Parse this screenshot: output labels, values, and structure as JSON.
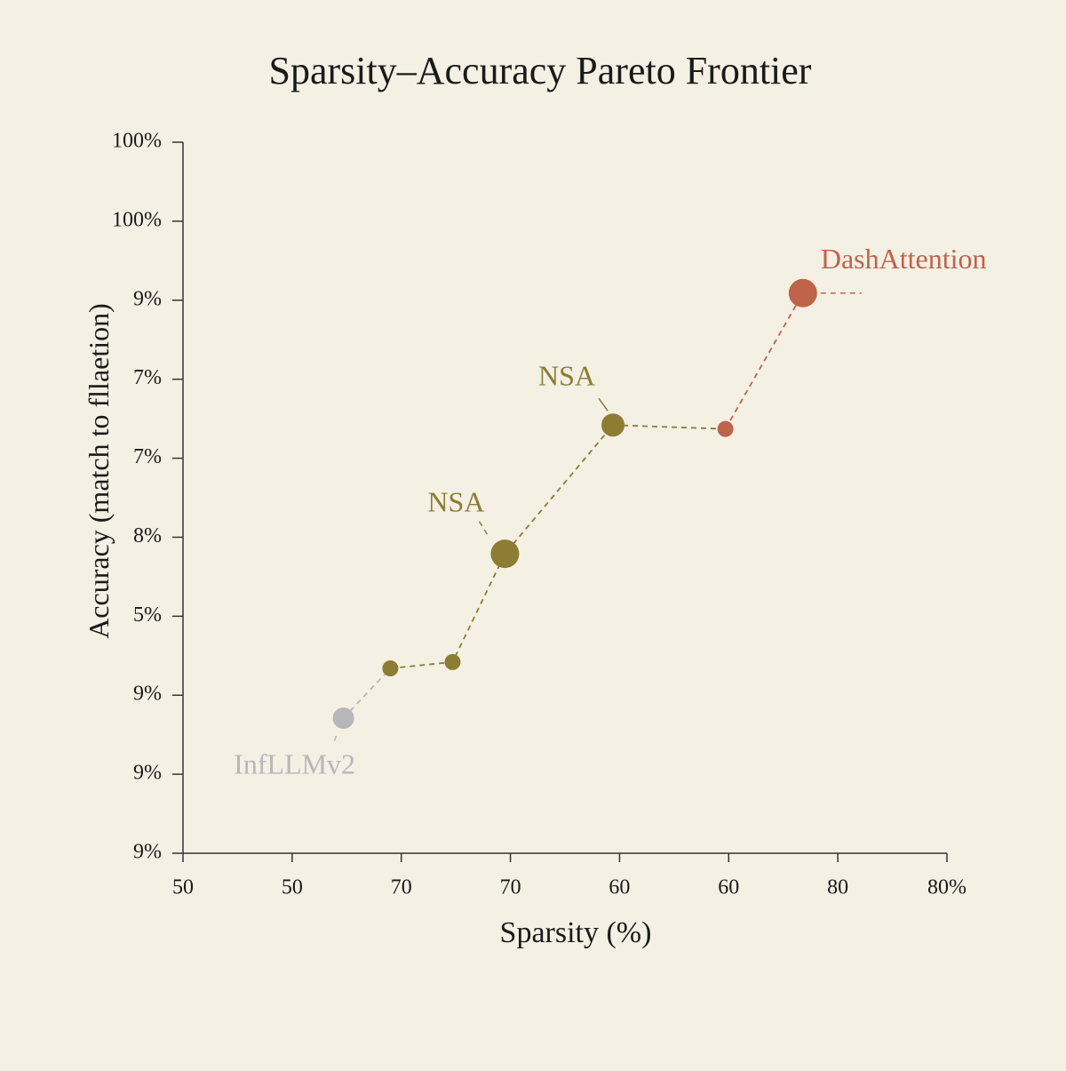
{
  "chart_data": {
    "type": "scatter",
    "title": "Sparsity–Accuracy Pareto Frontier",
    "x_label": "Sparsity (%)",
    "y_label": "Accuracy (match to fllaetion)",
    "xlim": [
      0,
      7
    ],
    "ylim": [
      0,
      9
    ],
    "xticks": [
      {
        "value": 0,
        "label": "50"
      },
      {
        "value": 1,
        "label": "50"
      },
      {
        "value": 2,
        "label": "70"
      },
      {
        "value": 3,
        "label": "70"
      },
      {
        "value": 4,
        "label": "60"
      },
      {
        "value": 5,
        "label": "60"
      },
      {
        "value": 6,
        "label": "80"
      },
      {
        "value": 7,
        "label": "80%"
      }
    ],
    "yticks": [
      {
        "value": 0,
        "label": "9%"
      },
      {
        "value": 1,
        "label": "9%"
      },
      {
        "value": 2,
        "label": "9%"
      },
      {
        "value": 3,
        "label": "5%"
      },
      {
        "value": 4,
        "label": "8%"
      },
      {
        "value": 5,
        "label": "7%"
      },
      {
        "value": 6,
        "label": "7%"
      },
      {
        "value": 7,
        "label": "9%"
      },
      {
        "value": 8,
        "label": "100%"
      },
      {
        "value": 9,
        "label": "100%"
      }
    ],
    "series": [
      {
        "name": "InfLLMv2",
        "color": "#b7b7bb",
        "x": [
          1.47
        ],
        "values": [
          1.71
        ],
        "sizes": [
          12
        ]
      },
      {
        "name": "NSA",
        "color": "#8c7c34",
        "x": [
          1.9,
          2.47,
          2.95,
          3.94
        ],
        "values": [
          2.34,
          2.42,
          3.79,
          5.42
        ],
        "sizes": [
          9,
          9,
          16,
          13
        ]
      },
      {
        "name": "DashAttention",
        "color": "#c0634b",
        "x": [
          4.97,
          5.68
        ],
        "values": [
          5.37,
          7.09
        ],
        "sizes": [
          9,
          16
        ]
      }
    ],
    "annotations": [
      {
        "text": "NSA"
      }
    ]
  }
}
